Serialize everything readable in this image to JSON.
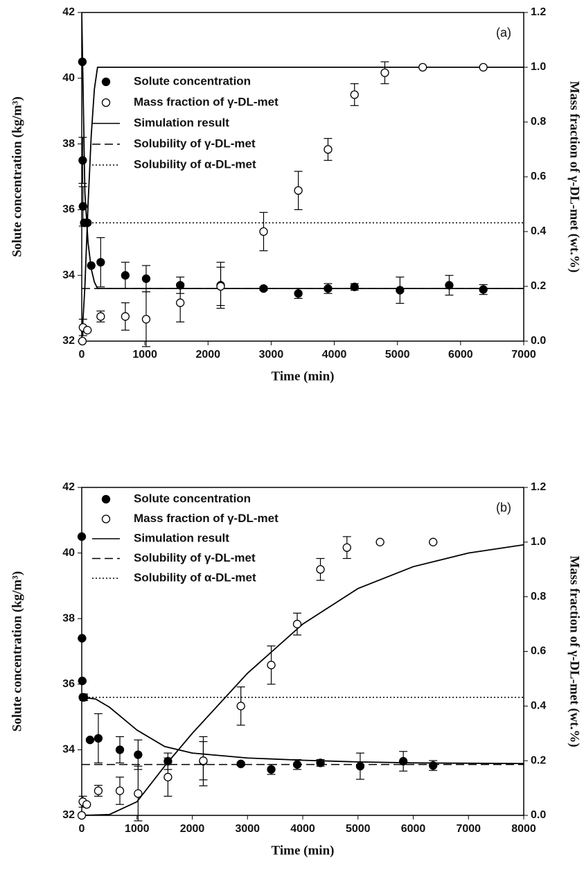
{
  "chart_data": [
    {
      "type": "scatter",
      "panel_label": "(a)",
      "xlabel": "Time (min)",
      "ylabel": "Solute concentration (kg/m³)",
      "y2label": "Mass fraction of γ-DL-met (wt.%)",
      "xlim": [
        0,
        7000
      ],
      "xticks": [
        0,
        1000,
        2000,
        3000,
        4000,
        5000,
        6000,
        7000
      ],
      "ylim": [
        32,
        42
      ],
      "yticks": [
        32,
        34,
        36,
        38,
        40,
        42
      ],
      "y2lim": [
        0,
        1.2
      ],
      "y2ticks": [
        {
          "value": 0,
          "label": "0.0"
        },
        0.2,
        0.4,
        0.6,
        0.8,
        {
          "value": 1,
          "label": "1.0"
        },
        1.2
      ],
      "legend": "upper left",
      "series": [
        {
          "name": "Solute concentration",
          "kind": "scatter",
          "marker": "filled",
          "color": "#000",
          "axis": "y",
          "x": [
            10,
            15,
            20,
            40,
            90,
            150,
            300,
            690,
            1020,
            1560,
            2200,
            2880,
            3430,
            3900,
            4320,
            5040,
            5820,
            6360
          ],
          "values": [
            40.5,
            37.5,
            36.1,
            35.6,
            35.6,
            34.3,
            34.4,
            34.0,
            33.9,
            33.7,
            33.7,
            33.6,
            33.45,
            33.6,
            33.65,
            33.55,
            33.7,
            33.57
          ],
          "errors": [
            0,
            0.7,
            0.6,
            0,
            0,
            0,
            0.75,
            0.4,
            0.4,
            0.25,
            0.7,
            0.05,
            0.15,
            0.15,
            0.1,
            0.4,
            0.3,
            0.15
          ]
        },
        {
          "name": "Mass fraction of γ-DL-met",
          "kind": "scatter",
          "marker": "open",
          "color": "#000",
          "axis": "y2",
          "x": [
            10,
            20,
            90,
            300,
            690,
            1020,
            1560,
            2200,
            2880,
            3430,
            3900,
            4320,
            4800,
            5400,
            6360
          ],
          "values": [
            0.0,
            0.05,
            0.04,
            0.09,
            0.09,
            0.08,
            0.14,
            0.2,
            0.4,
            0.55,
            0.7,
            0.9,
            0.98,
            1.0,
            1.0
          ],
          "errors": [
            0,
            0.03,
            0,
            0.02,
            0.05,
            0.1,
            0.07,
            0.07,
            0.07,
            0.07,
            0.04,
            0.04,
            0.04,
            0,
            0
          ]
        },
        {
          "name": "Simulation result",
          "kind": "line",
          "dash": "solid",
          "color": "#000",
          "parts": [
            {
              "axis": "y",
              "x": [
                0,
                50,
                100,
                150,
                200,
                250,
                7000
              ],
              "values": [
                42,
                36.5,
                35,
                34.2,
                33.8,
                33.6,
                33.6
              ]
            },
            {
              "axis": "y2",
              "x": [
                0,
                50,
                100,
                150,
                200,
                250,
                7000
              ],
              "values": [
                0,
                0.2,
                0.5,
                0.75,
                0.92,
                1.0,
                1.0
              ]
            }
          ]
        },
        {
          "name": "Solubility of γ-DL-met",
          "kind": "hline",
          "dash": "dashed",
          "color": "#000",
          "value": 33.6
        },
        {
          "name": "Solubility of α-DL-met",
          "kind": "hline",
          "dash": "dotted",
          "color": "#000",
          "value": 35.6
        }
      ]
    },
    {
      "type": "scatter",
      "panel_label": "(b)",
      "xlabel": "Time (min)",
      "ylabel": "Solute concentration (kg/m³)",
      "y2label": "Mass fraction of γ-DL-met (wt.%)",
      "xlim": [
        0,
        8000
      ],
      "xticks": [
        0,
        1000,
        2000,
        3000,
        4000,
        5000,
        6000,
        7000,
        8000
      ],
      "ylim": [
        32,
        42
      ],
      "yticks": [
        32,
        34,
        36,
        38,
        40,
        42
      ],
      "y2lim": [
        0,
        1.2
      ],
      "y2ticks": [
        {
          "value": 0,
          "label": "0.0"
        },
        0.2,
        0.4,
        0.6,
        0.8,
        {
          "value": 1,
          "label": "1.0"
        },
        1.2
      ],
      "legend": "upper left",
      "series": [
        {
          "name": "Solute concentration",
          "kind": "scatter",
          "marker": "filled",
          "color": "#000",
          "axis": "y",
          "x": [
            0,
            5,
            10,
            20,
            40,
            150,
            300,
            690,
            1020,
            1560,
            2200,
            2880,
            3430,
            3900,
            4320,
            5040,
            5820,
            6360
          ],
          "values": [
            40.5,
            37.4,
            36.1,
            35.6,
            35.6,
            34.3,
            34.35,
            34.0,
            33.85,
            33.65,
            33.65,
            33.57,
            33.4,
            33.55,
            33.6,
            33.5,
            33.65,
            33.52
          ],
          "errors": [
            0,
            0,
            0,
            0,
            0.1,
            0,
            0.75,
            0.4,
            0.45,
            0.25,
            0.75,
            0.05,
            0.15,
            0.15,
            0.1,
            0.4,
            0.3,
            0.15
          ]
        },
        {
          "name": "Mass fraction of γ-DL-met",
          "kind": "scatter",
          "marker": "open",
          "color": "#000",
          "axis": "y2",
          "x": [
            0,
            20,
            90,
            300,
            690,
            1020,
            1560,
            2200,
            2880,
            3430,
            3900,
            4320,
            4800,
            5400,
            6360
          ],
          "values": [
            0.0,
            0.05,
            0.04,
            0.09,
            0.09,
            0.08,
            0.14,
            0.2,
            0.4,
            0.55,
            0.7,
            0.9,
            0.98,
            1.0,
            1.0
          ],
          "errors": [
            0,
            0.02,
            0,
            0.02,
            0.05,
            0.1,
            0.07,
            0.07,
            0.07,
            0.07,
            0.04,
            0.04,
            0.04,
            0,
            0
          ]
        },
        {
          "name": "Simulation result",
          "kind": "line",
          "dash": "solid",
          "color": "#000",
          "parts": [
            {
              "axis": "y",
              "x": [
                0,
                250,
                500,
                750,
                1000,
                1500,
                2000,
                3000,
                4000,
                5000,
                6000,
                8000
              ],
              "values": [
                35.6,
                35.55,
                35.3,
                34.95,
                34.6,
                34.1,
                33.9,
                33.75,
                33.68,
                33.63,
                33.6,
                33.58
              ]
            },
            {
              "axis": "y2",
              "x": [
                0,
                500,
                1000,
                1500,
                2000,
                3000,
                4000,
                5000,
                6000,
                7000,
                8000
              ],
              "values": [
                0,
                0.003,
                0.05,
                0.18,
                0.3,
                0.52,
                0.7,
                0.83,
                0.91,
                0.96,
                0.99
              ]
            }
          ]
        },
        {
          "name": "Solubility of γ-DL-met",
          "kind": "hline",
          "dash": "dashed",
          "color": "#000",
          "value": 33.55
        },
        {
          "name": "Solubility of α-DL-met",
          "kind": "hline",
          "dash": "dotted",
          "color": "#000",
          "value": 35.6
        }
      ]
    }
  ]
}
